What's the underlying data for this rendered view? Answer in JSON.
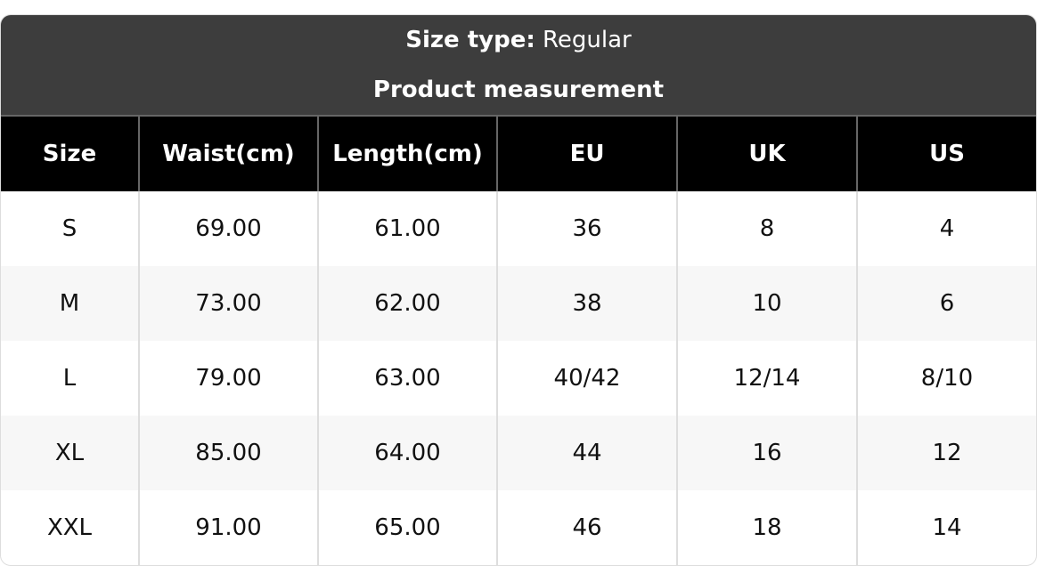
{
  "header": {
    "size_type_label": "Size type:",
    "size_type_value": "Regular",
    "subtitle": "Product measurement"
  },
  "table": {
    "columns": [
      "Size",
      "Waist(cm)",
      "Length(cm)",
      "EU",
      "UK",
      "US"
    ],
    "rows": [
      [
        "S",
        "69.00",
        "61.00",
        "36",
        "8",
        "4"
      ],
      [
        "M",
        "73.00",
        "62.00",
        "38",
        "10",
        "6"
      ],
      [
        "L",
        "79.00",
        "63.00",
        "40/42",
        "12/14",
        "8/10"
      ],
      [
        "XL",
        "85.00",
        "64.00",
        "44",
        "16",
        "12"
      ],
      [
        "XXL",
        "91.00",
        "65.00",
        "46",
        "18",
        "14"
      ]
    ]
  }
}
